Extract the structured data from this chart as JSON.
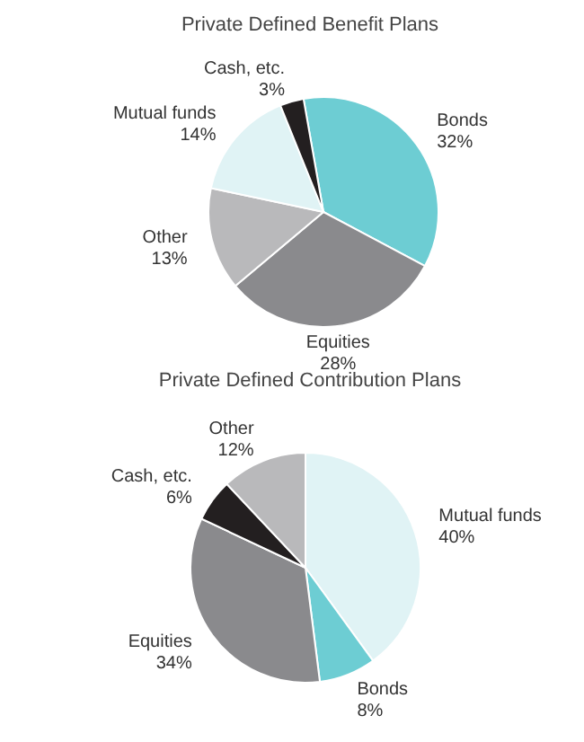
{
  "chart_data": [
    {
      "type": "pie",
      "title": "Private Defined Benefit Plans",
      "categories": [
        "Bonds",
        "Equities",
        "Other",
        "Mutual funds",
        "Cash, etc."
      ],
      "values": [
        32,
        28,
        13,
        14,
        3
      ],
      "value_labels": [
        "32%",
        "28%",
        "13%",
        "14%",
        "3%"
      ],
      "colors": [
        "#6dcdd3",
        "#8a8a8d",
        "#b9b9bb",
        "#e0f3f5",
        "#231f20"
      ]
    },
    {
      "type": "pie",
      "title": "Private Defined Contribution Plans",
      "categories": [
        "Mutual funds",
        "Bonds",
        "Equities",
        "Cash, etc.",
        "Other"
      ],
      "values": [
        40,
        8,
        34,
        6,
        12
      ],
      "value_labels": [
        "40%",
        "8%",
        "34%",
        "6%",
        "12%"
      ],
      "colors": [
        "#e0f3f5",
        "#6dcdd3",
        "#8a8a8d",
        "#231f20",
        "#b9b9bb"
      ]
    }
  ]
}
